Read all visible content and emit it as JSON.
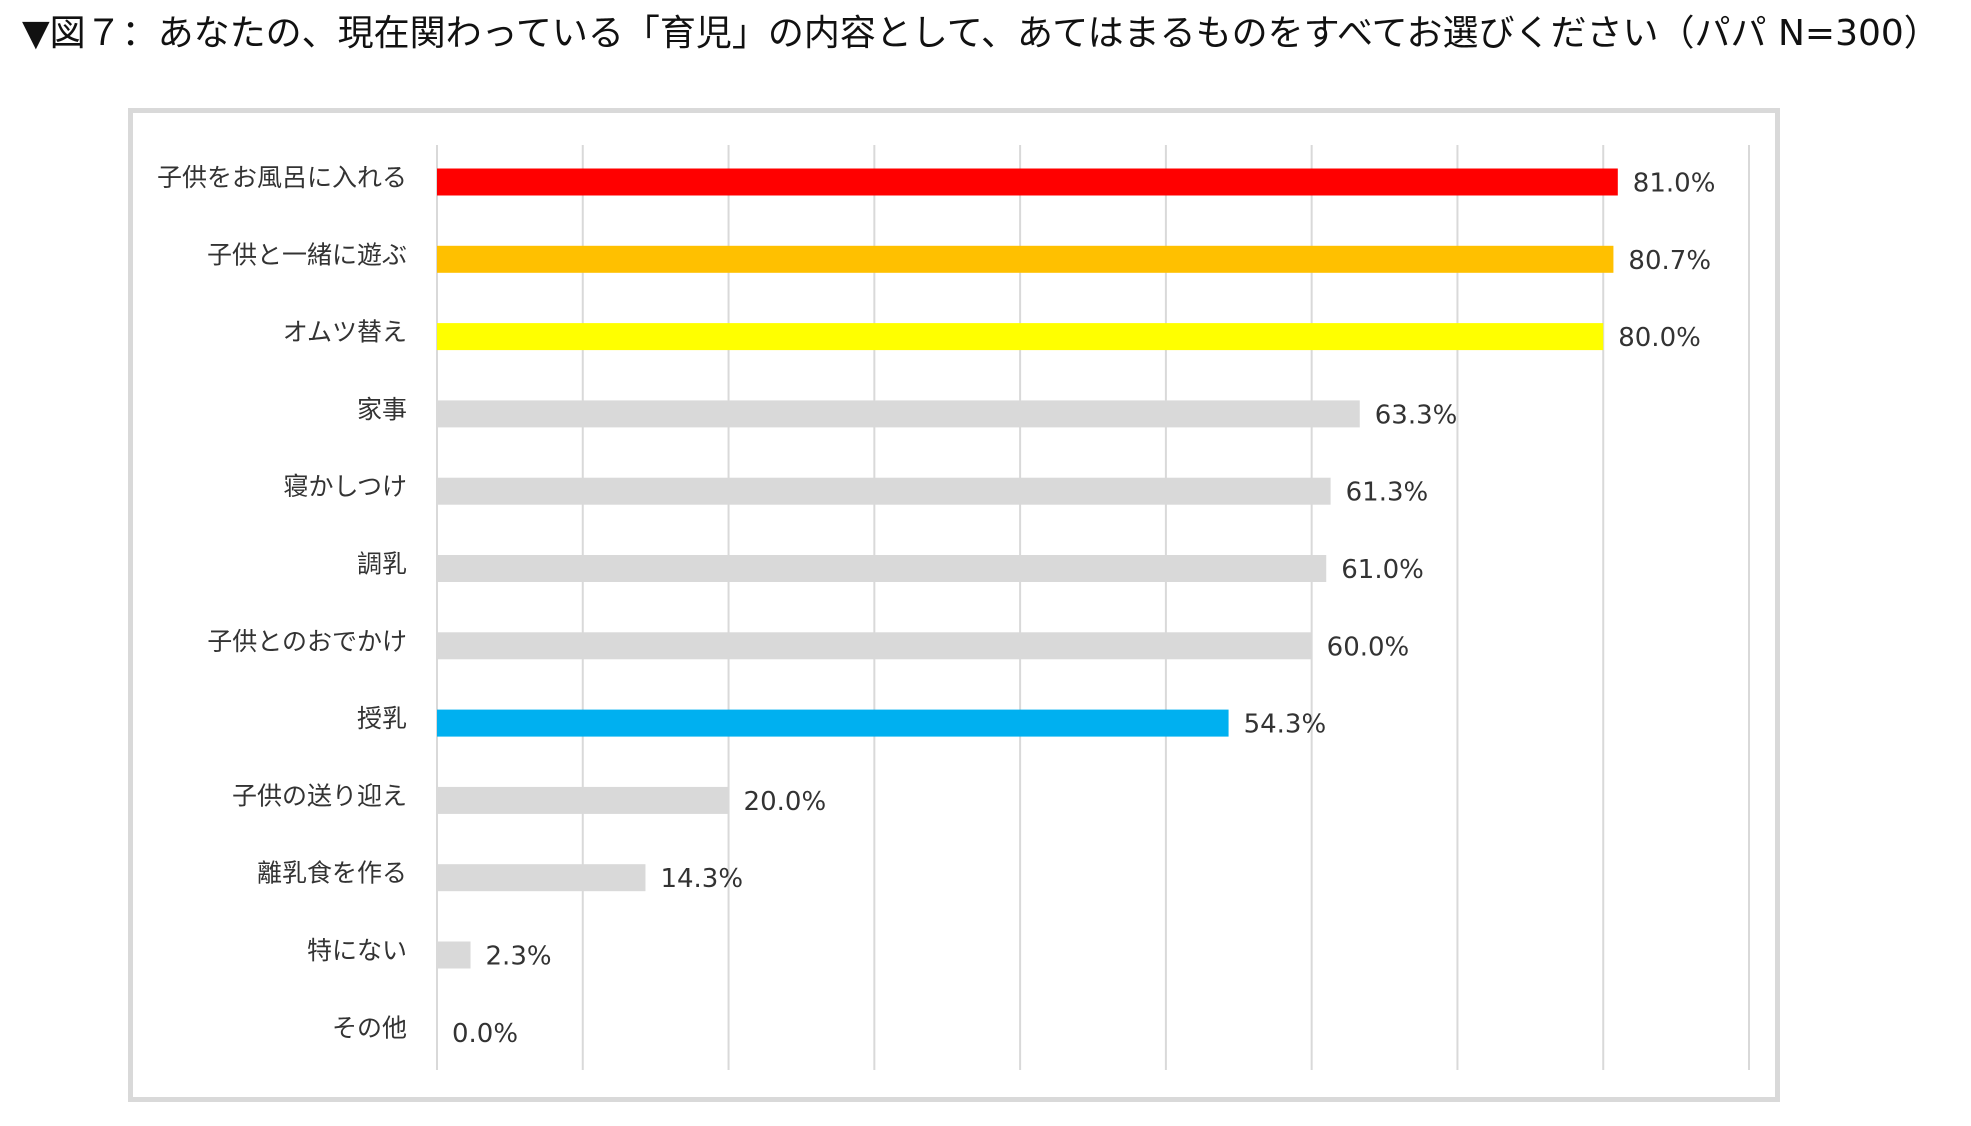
{
  "title": "▼図７：あなたの、現在関わっている「育児」の内容として、あてはまるものをすべてお選びください（パパ N=300）",
  "chart_data": {
    "type": "bar",
    "orientation": "horizontal",
    "title": "▼図７：あなたの、現在関わっている「育児」の内容として、あてはまるものをすべてお選びください（パパ N=300）",
    "xlabel": "",
    "ylabel": "",
    "categories": [
      "子供をお風呂に入れる",
      "子供と一緒に遊ぶ",
      "オムツ替え",
      "家事",
      "寝かしつけ",
      "調乳",
      "子供とのおでかけ",
      "授乳",
      "子供の送り迎え",
      "離乳食を作る",
      "特にない",
      "その他"
    ],
    "values": [
      81.0,
      80.7,
      80.0,
      63.3,
      61.3,
      61.0,
      60.0,
      54.3,
      20.0,
      14.3,
      2.3,
      0.0
    ],
    "value_labels": [
      "81.0%",
      "80.7%",
      "80.0%",
      "63.3%",
      "61.3%",
      "61.0%",
      "60.0%",
      "54.3%",
      "20.0%",
      "14.3%",
      "2.3%",
      "0.0%"
    ],
    "bar_colors": [
      "#ff0000",
      "#ffc000",
      "#ffff00",
      "#d9d9d9",
      "#d9d9d9",
      "#d9d9d9",
      "#d9d9d9",
      "#00b0f0",
      "#d9d9d9",
      "#d9d9d9",
      "#d9d9d9",
      "#d9d9d9"
    ],
    "xlim": [
      0,
      90
    ],
    "grid": true,
    "gridline_color": "#d9d9d9",
    "legend": "none"
  }
}
